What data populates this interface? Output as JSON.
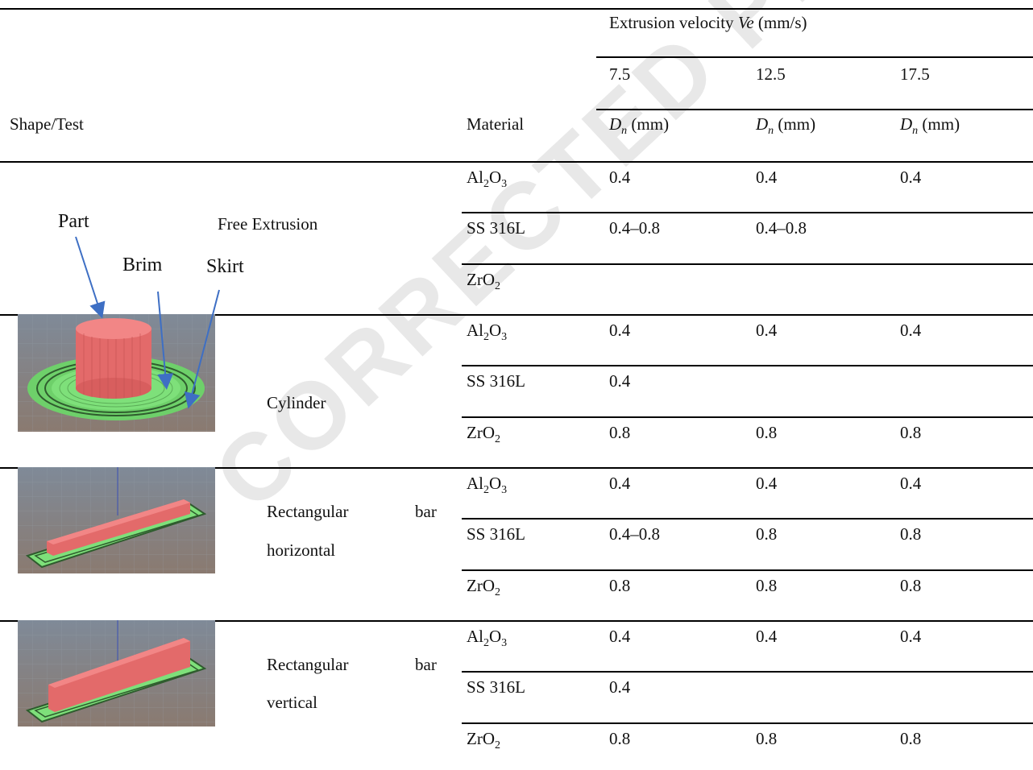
{
  "header": {
    "shape_test": "Shape/Test",
    "material": "Material",
    "group": "Extrusion velocity",
    "group_var": "Ve",
    "group_unit": "(mm/s)",
    "velocities": [
      "7.5",
      "12.5",
      "17.5"
    ],
    "dn_var": "D",
    "dn_sub": "n",
    "dn_unit": "(mm)"
  },
  "materials": {
    "al": {
      "a": "Al",
      "s1": "2",
      "b": "O",
      "s2": "3"
    },
    "ss": "SS 316L",
    "zr": {
      "a": "ZrO",
      "s1": "2"
    }
  },
  "callouts": {
    "part": "Part",
    "brim": "Brim",
    "skirt": "Skirt"
  },
  "sections": [
    {
      "label": "Free Extrusion",
      "values": [
        [
          "0.4",
          "0.4",
          "0.4"
        ],
        [
          "0.4–0.8",
          "0.4–0.8",
          ""
        ],
        [
          "",
          "",
          ""
        ]
      ]
    },
    {
      "label": "Cylinder",
      "values": [
        [
          "0.4",
          "0.4",
          "0.4"
        ],
        [
          "0.4",
          "",
          ""
        ],
        [
          "0.8",
          "0.8",
          "0.8"
        ]
      ]
    },
    {
      "label_1": "Rectangular",
      "label_2": "bar",
      "label_3": "horizontal",
      "values": [
        [
          "0.4",
          "0.4",
          "0.4"
        ],
        [
          "0.4–0.8",
          "0.8",
          "0.8"
        ],
        [
          "0.8",
          "0.8",
          "0.8"
        ]
      ]
    },
    {
      "label_1": "Rectangular",
      "label_2": "bar",
      "label_3": "vertical",
      "values": [
        [
          "0.4",
          "0.4",
          "0.4"
        ],
        [
          "0.4",
          "",
          ""
        ],
        [
          "0.8",
          "0.8",
          "0.8"
        ]
      ]
    }
  ],
  "watermark": "CORRECTED PROOF",
  "colors": {
    "part": "#f07878",
    "brim": "#7ee07a",
    "bed": "#6a7585",
    "arrow": "#3e6fc4"
  }
}
